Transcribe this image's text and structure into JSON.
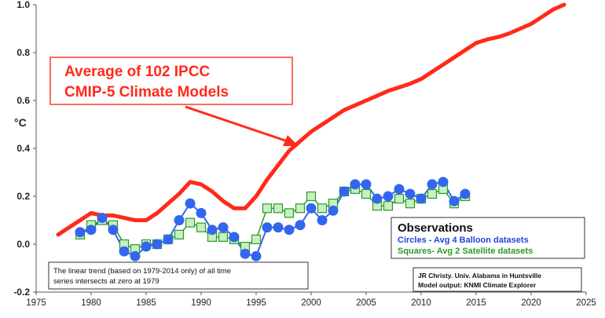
{
  "chart_data": {
    "type": "line",
    "ylabel": "°C",
    "xlim": [
      1975,
      2025
    ],
    "ylim": [
      -0.2,
      1.0
    ],
    "xticks": [
      "1975",
      "1980",
      "1985",
      "1990",
      "1995",
      "2000",
      "2005",
      "2010",
      "2015",
      "2020",
      "2025"
    ],
    "yticks": [
      "-0.2",
      "0.0",
      "0.2",
      "0.4",
      "0.6",
      "0.8",
      "1.0"
    ],
    "grid": false,
    "colors": {
      "models": "#ff2a1a",
      "balloons": "#3366ee",
      "satellites": "#2a9a2a",
      "satellite_fill": "#c8f0c0"
    },
    "series": [
      {
        "name": "Average of 102 IPCC CMIP-5 Climate Models",
        "x": [
          1977,
          1978,
          1979,
          1980,
          1981,
          1982,
          1983,
          1984,
          1985,
          1986,
          1987,
          1988,
          1989,
          1990,
          1991,
          1992,
          1993,
          1994,
          1995,
          1996,
          1997,
          1998,
          1999,
          2000,
          2001,
          2002,
          2003,
          2004,
          2005,
          2006,
          2007,
          2008,
          2009,
          2010,
          2011,
          2012,
          2013,
          2014,
          2015,
          2016,
          2017,
          2018,
          2019,
          2020,
          2021,
          2022,
          2023
        ],
        "y": [
          0.04,
          0.07,
          0.1,
          0.13,
          0.12,
          0.12,
          0.11,
          0.1,
          0.1,
          0.13,
          0.17,
          0.21,
          0.26,
          0.25,
          0.22,
          0.18,
          0.15,
          0.15,
          0.2,
          0.27,
          0.33,
          0.39,
          0.43,
          0.47,
          0.5,
          0.53,
          0.56,
          0.58,
          0.6,
          0.62,
          0.64,
          0.655,
          0.67,
          0.69,
          0.72,
          0.75,
          0.78,
          0.81,
          0.84,
          0.855,
          0.865,
          0.88,
          0.9,
          0.92,
          0.95,
          0.98,
          1.0
        ]
      },
      {
        "name": "Circles - Avg 4 Balloon datasets",
        "marker": "circle",
        "x": [
          1979,
          1980,
          1981,
          1982,
          1983,
          1984,
          1985,
          1986,
          1987,
          1988,
          1989,
          1990,
          1991,
          1992,
          1993,
          1994,
          1995,
          1996,
          1997,
          1998,
          1999,
          2000,
          2001,
          2002,
          2003,
          2004,
          2005,
          2006,
          2007,
          2008,
          2009,
          2010,
          2011,
          2012,
          2013,
          2014
        ],
        "y": [
          0.05,
          0.06,
          0.11,
          0.06,
          -0.03,
          -0.05,
          -0.01,
          0.0,
          0.02,
          0.1,
          0.17,
          0.13,
          0.06,
          0.07,
          0.03,
          -0.04,
          -0.05,
          0.07,
          0.07,
          0.06,
          0.08,
          0.15,
          0.1,
          0.14,
          0.22,
          0.25,
          0.25,
          0.19,
          0.2,
          0.23,
          0.21,
          0.19,
          0.25,
          0.26,
          0.18,
          0.21
        ]
      },
      {
        "name": "Squares- Avg 2 Satellite datasets",
        "marker": "square",
        "x": [
          1979,
          1980,
          1981,
          1982,
          1983,
          1984,
          1985,
          1986,
          1987,
          1988,
          1989,
          1990,
          1991,
          1992,
          1993,
          1994,
          1995,
          1996,
          1997,
          1998,
          1999,
          2000,
          2001,
          2002,
          2003,
          2004,
          2005,
          2006,
          2007,
          2008,
          2009,
          2010,
          2011,
          2012,
          2013,
          2014
        ],
        "y": [
          0.04,
          0.08,
          0.1,
          0.08,
          0.0,
          -0.02,
          0.0,
          0.0,
          0.02,
          0.04,
          0.09,
          0.07,
          0.03,
          0.03,
          0.02,
          -0.01,
          0.02,
          0.15,
          0.15,
          0.13,
          0.15,
          0.2,
          0.15,
          0.17,
          0.22,
          0.23,
          0.21,
          0.16,
          0.16,
          0.19,
          0.17,
          0.19,
          0.21,
          0.23,
          0.17,
          0.2
        ]
      }
    ],
    "annotations": {
      "models_label_line1": "Average of 102 IPCC",
      "models_label_line2": "CMIP-5 Climate Models",
      "legend_title": "Observations",
      "trend_note_line1": "The linear trend (based on 1979-2014 only) of all time",
      "trend_note_line2": "series intersects at zero at 1979",
      "credit_line1": "JR Christy. Univ. Alabama in Huntsville",
      "credit_line2": "Model output: KNMI Climate Explorer"
    }
  }
}
